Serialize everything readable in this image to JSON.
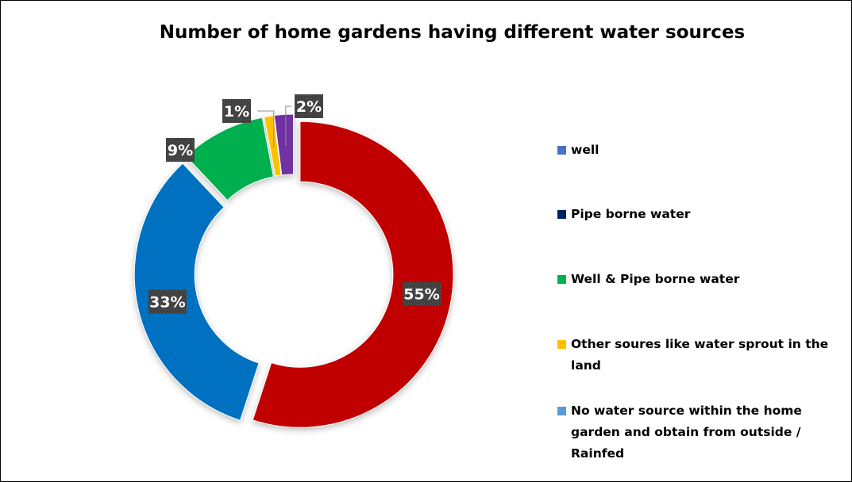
{
  "chart_data": {
    "type": "pie",
    "title": "Number of home gardens having different water sources",
    "categories": [
      "well",
      "Pipe borne water",
      "Well & Pipe borne water",
      "Other soures like water sprout in the land",
      "No water source within the home garden and obtain from outside / Rainfed"
    ],
    "values": [
      55,
      33,
      9,
      1,
      2
    ],
    "data_labels": [
      "55%",
      "33%",
      "9%",
      "1%",
      "2%"
    ],
    "slice_colors": [
      "#c00000",
      "#0070c0",
      "#00b050",
      "#ffc000",
      "#7030a0"
    ],
    "legend_colors": [
      "#4472c4",
      "#002060",
      "#00b050",
      "#ffc000",
      "#5b9bd5"
    ],
    "legend_position": "right",
    "donut": true
  }
}
